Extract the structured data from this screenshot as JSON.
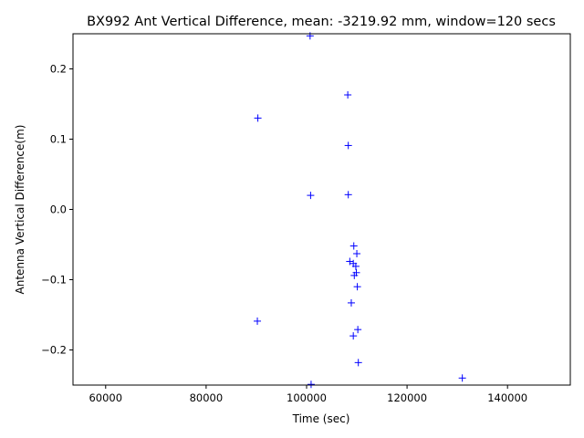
{
  "chart_data": {
    "type": "scatter",
    "title": "BX992 Ant Vertical Difference, mean: -3219.92 mm, window=120 secs",
    "xlabel": "Time (sec)",
    "ylabel": "Antenna Vertical Difference(m)",
    "xlim": [
      53500,
      152500
    ],
    "ylim": [
      -0.25,
      0.25
    ],
    "xticks": [
      60000,
      80000,
      100000,
      120000,
      140000
    ],
    "xtick_labels": [
      "60000",
      "80000",
      "100000",
      "120000",
      "140000"
    ],
    "yticks": [
      -0.2,
      -0.1,
      0.0,
      0.1,
      0.2
    ],
    "ytick_labels": [
      "−0.2",
      "−0.1",
      "0.0",
      "0.1",
      "0.2"
    ],
    "grid": false,
    "marker": "+",
    "color": "#0000ff",
    "series": [
      {
        "points": [
          {
            "x": 100700,
            "y": 0.247
          },
          {
            "x": 108200,
            "y": 0.163
          },
          {
            "x": 90300,
            "y": 0.13
          },
          {
            "x": 108300,
            "y": 0.091
          },
          {
            "x": 100800,
            "y": 0.02
          },
          {
            "x": 108300,
            "y": 0.021
          },
          {
            "x": 109400,
            "y": -0.052
          },
          {
            "x": 110000,
            "y": -0.063
          },
          {
            "x": 108600,
            "y": -0.074
          },
          {
            "x": 109300,
            "y": -0.077
          },
          {
            "x": 109800,
            "y": -0.081
          },
          {
            "x": 109500,
            "y": -0.094
          },
          {
            "x": 109900,
            "y": -0.09
          },
          {
            "x": 110100,
            "y": -0.11
          },
          {
            "x": 108900,
            "y": -0.133
          },
          {
            "x": 90200,
            "y": -0.159
          },
          {
            "x": 110200,
            "y": -0.171
          },
          {
            "x": 109300,
            "y": -0.18
          },
          {
            "x": 110300,
            "y": -0.218
          },
          {
            "x": 131000,
            "y": -0.24
          },
          {
            "x": 100900,
            "y": -0.249
          }
        ]
      }
    ]
  }
}
